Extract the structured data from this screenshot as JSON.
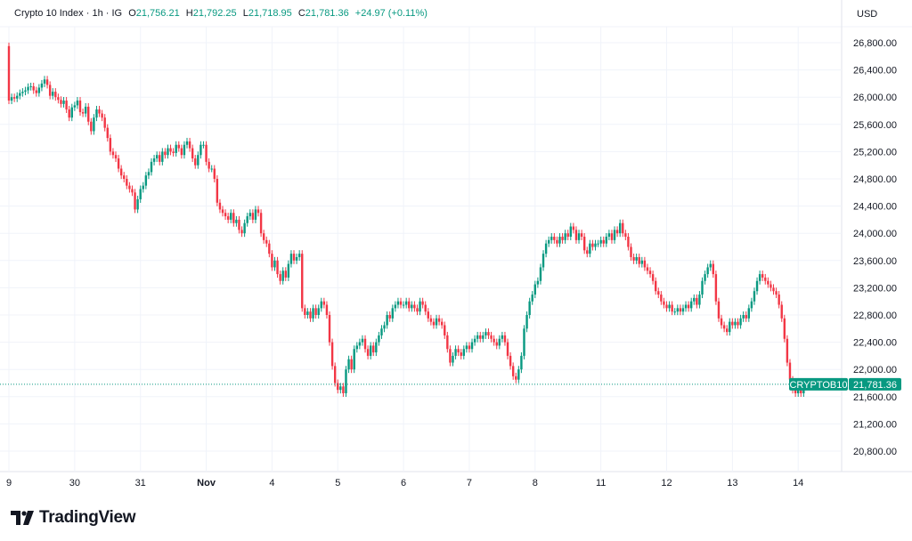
{
  "header": {
    "symbol": "Crypto 10 Index",
    "interval": "1h",
    "exchange": "IG",
    "sep": "·",
    "o_label": "O",
    "o": "21,756.21",
    "h_label": "H",
    "h": "21,792.25",
    "l_label": "L",
    "l": "21,718.95",
    "c_label": "C",
    "c": "21,781.36",
    "change": "+24.97 (+0.11%)"
  },
  "currency": "USD",
  "brand": "TradingView",
  "colors": {
    "up": "#089981",
    "down": "#f23645",
    "grid": "#f0f3fa",
    "text": "#131722"
  },
  "chart_data": {
    "type": "candlestick",
    "title": "Crypto 10 Index · 1h · IG",
    "y_ticks": [
      "26,800.00",
      "26,400.00",
      "26,000.00",
      "25,600.00",
      "25,200.00",
      "24,800.00",
      "24,400.00",
      "24,000.00",
      "23,600.00",
      "23,200.00",
      "22,800.00",
      "22,400.00",
      "22,000.00",
      "21,600.00",
      "21,200.00",
      "20,800.00"
    ],
    "ylim": [
      20800,
      26800
    ],
    "x_ticks": [
      "9",
      "30",
      "31",
      "Nov",
      "4",
      "5",
      "6",
      "7",
      "8",
      "11",
      "12",
      "13",
      "14"
    ],
    "grid": true,
    "first_open": 26750,
    "closes": [
      25950,
      26000,
      25980,
      26020,
      26060,
      26080,
      26100,
      26150,
      26160,
      26100,
      26060,
      26140,
      26200,
      26260,
      26180,
      26020,
      26080,
      26000,
      25960,
      25900,
      25950,
      25820,
      25700,
      25850,
      25880,
      25950,
      25780,
      25760,
      25860,
      25640,
      25500,
      25700,
      25820,
      25760,
      25700,
      25550,
      25400,
      25200,
      25150,
      25100,
      24950,
      24850,
      24800,
      24700,
      24650,
      24600,
      24350,
      24500,
      24650,
      24700,
      24850,
      24900,
      25050,
      25100,
      25150,
      25050,
      25200,
      25150,
      25250,
      25200,
      25180,
      25300,
      25250,
      25150,
      25300,
      25350,
      25250,
      25100,
      25000,
      25150,
      25300,
      25300,
      25050,
      24950,
      24950,
      24800,
      24450,
      24350,
      24300,
      24250,
      24200,
      24300,
      24150,
      24200,
      24050,
      24000,
      24150,
      24250,
      24300,
      24200,
      24350,
      24300,
      24000,
      23900,
      23850,
      23700,
      23500,
      23600,
      23400,
      23300,
      23450,
      23350,
      23550,
      23700,
      23600,
      23650,
      23700,
      22900,
      22800,
      22850,
      22750,
      22900,
      22800,
      22900,
      23000,
      22950,
      22800,
      22400,
      22050,
      21800,
      21700,
      21750,
      21650,
      22000,
      22150,
      22000,
      22300,
      22350,
      22400,
      22450,
      22300,
      22200,
      22350,
      22250,
      22400,
      22500,
      22600,
      22650,
      22800,
      22750,
      22900,
      22950,
      23000,
      22950,
      22950,
      23000,
      22900,
      22950,
      22900,
      22850,
      23000,
      22950,
      22850,
      22750,
      22700,
      22650,
      22750,
      22700,
      22650,
      22500,
      22300,
      22100,
      22200,
      22300,
      22250,
      22200,
      22300,
      22350,
      22300,
      22400,
      22450,
      22500,
      22450,
      22500,
      22550,
      22500,
      22450,
      22400,
      22350,
      22450,
      22500,
      22400,
      22200,
      22050,
      21900,
      21850,
      22000,
      22200,
      22600,
      22800,
      23000,
      23100,
      23250,
      23300,
      23500,
      23700,
      23850,
      23900,
      23950,
      23900,
      23850,
      23950,
      23900,
      24000,
      23950,
      24100,
      24050,
      23900,
      24000,
      23950,
      23750,
      23700,
      23850,
      23800,
      23850,
      23850,
      23900,
      23850,
      23950,
      24000,
      23900,
      24050,
      24000,
      24150,
      24000,
      23950,
      23800,
      23650,
      23600,
      23650,
      23550,
      23600,
      23500,
      23450,
      23400,
      23300,
      23150,
      23100,
      23000,
      22950,
      22900,
      22950,
      22850,
      22850,
      22900,
      22850,
      22900,
      22950,
      22900,
      23000,
      23050,
      22950,
      23100,
      23300,
      23400,
      23500,
      23550,
      23400,
      23000,
      22750,
      22650,
      22600,
      22550,
      22700,
      22650,
      22700,
      22650,
      22750,
      22800,
      22750,
      22900,
      23000,
      23150,
      23300,
      23400,
      23350,
      23300,
      23250,
      23200,
      23150,
      23100,
      22950,
      22750,
      22450,
      22100,
      21850,
      21700,
      21650,
      21700,
      21650,
      21756.21,
      21781.36
    ],
    "last_price": 21781.36,
    "last_price_label": "21,781.36",
    "symbol_label": "CRYPTOB10"
  }
}
